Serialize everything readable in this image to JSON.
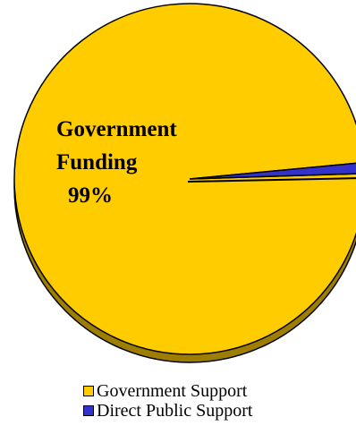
{
  "chart_data": {
    "type": "pie",
    "slices": [
      {
        "label": "Government Support",
        "value": 99,
        "color": "#FFCC00"
      },
      {
        "label": "Direct Public Support",
        "value": 1,
        "color": "#3333CC"
      }
    ],
    "slice_label": {
      "line1": "Government",
      "line2": "Funding",
      "percent": "99%"
    },
    "legend": {
      "position": "bottom",
      "items": [
        {
          "label": "Government Support",
          "color": "#FFCC00"
        },
        {
          "label": "Direct Public Support",
          "color": "#3333CC"
        }
      ]
    }
  }
}
